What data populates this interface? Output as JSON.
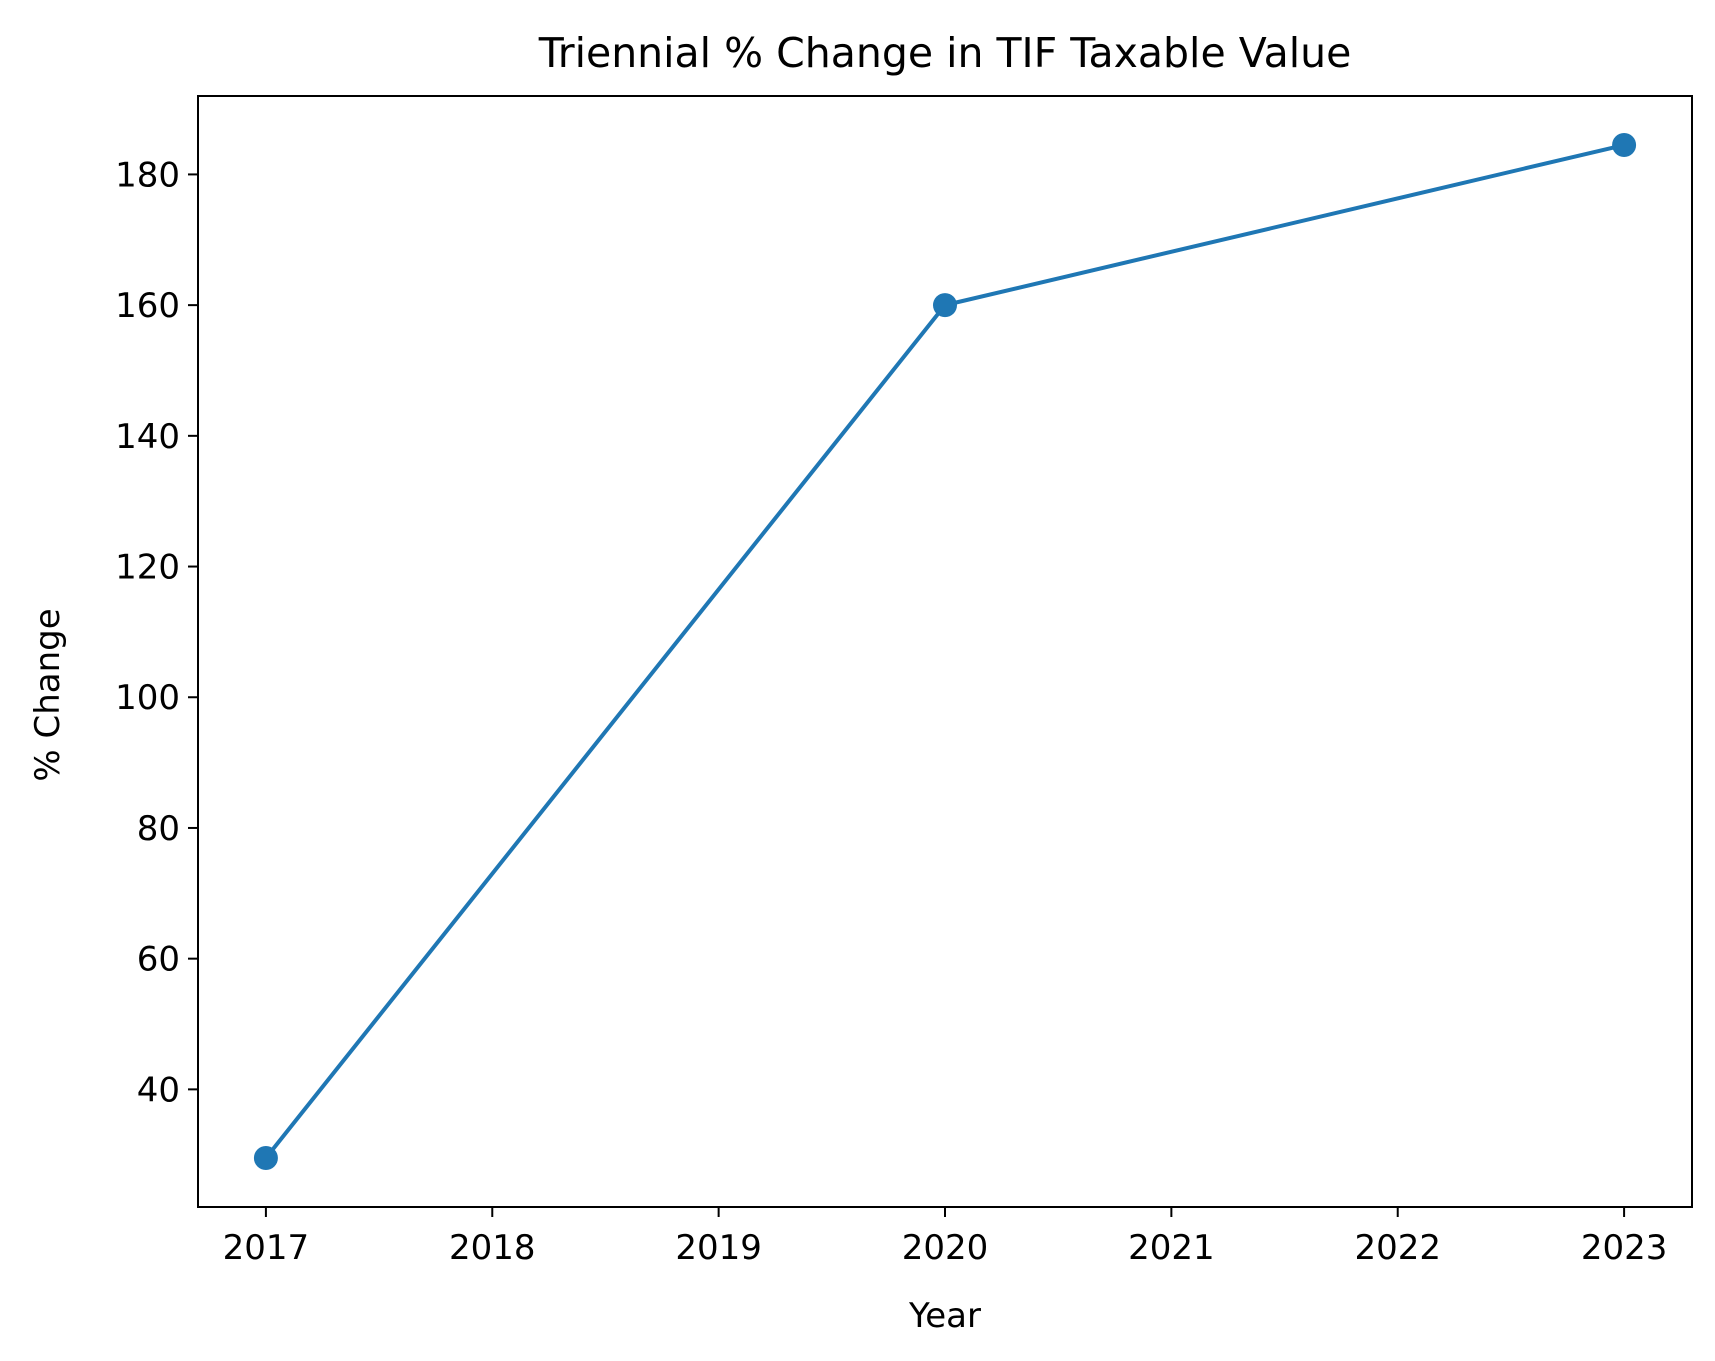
{
  "chart_data": {
    "type": "line",
    "title": "Triennial % Change in TIF Taxable Value",
    "xlabel": "Year",
    "ylabel": "% Change",
    "x_ticks": [
      "2017",
      "2018",
      "2019",
      "2020",
      "2021",
      "2022",
      "2023"
    ],
    "y_ticks": [
      "40",
      "60",
      "80",
      "100",
      "120",
      "140",
      "160",
      "180"
    ],
    "xlim": [
      2016.7,
      2023.3
    ],
    "ylim": [
      22,
      192
    ],
    "grid": false,
    "series": [
      {
        "color": "#1f77b4",
        "marker": "circle",
        "points": [
          {
            "x": 2017,
            "y": 29.5
          },
          {
            "x": 2020,
            "y": 160
          },
          {
            "x": 2023,
            "y": 184.5
          }
        ]
      }
    ]
  }
}
